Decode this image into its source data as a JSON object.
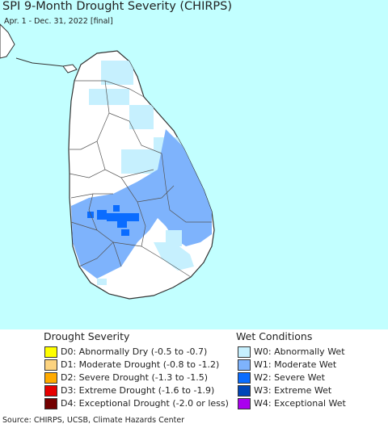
{
  "title": "SPI 9-Month Drought Severity (CHIRPS)",
  "subtitle": "Apr. 1 - Dec. 31, 2022 [final]",
  "source": "Source: CHIRPS, UCSB, Climate Hazards Center",
  "colors": {
    "ocean": "#c2ffff",
    "land": "#ffffff",
    "border": "#333333"
  },
  "legend": {
    "drought": {
      "title": "Drought Severity",
      "items": [
        {
          "label": "D0: Abnormally Dry (-0.5 to -0.7)",
          "color": "#ffff00"
        },
        {
          "label": "D1: Moderate Drought (-0.8 to -1.2)",
          "color": "#fcd37f"
        },
        {
          "label": "D2: Severe Drought (-1.3 to -1.5)",
          "color": "#ffaa00"
        },
        {
          "label": "D3: Extreme Drought (-1.6 to -1.9)",
          "color": "#e60000"
        },
        {
          "label": "D4: Exceptional Drought (-2.0 or less)",
          "color": "#730000"
        }
      ]
    },
    "wet": {
      "title": "Wet Conditions",
      "items": [
        {
          "label": "W0: Abnormally Wet",
          "color": "#c6f0fe"
        },
        {
          "label": "W1: Moderate Wet",
          "color": "#7eb3fc"
        },
        {
          "label": "W2: Severe Wet",
          "color": "#0a6cff"
        },
        {
          "label": "W3: Extreme Wet",
          "color": "#0046b8"
        },
        {
          "label": "W4: Exceptional Wet",
          "color": "#aa00ee"
        }
      ]
    }
  }
}
